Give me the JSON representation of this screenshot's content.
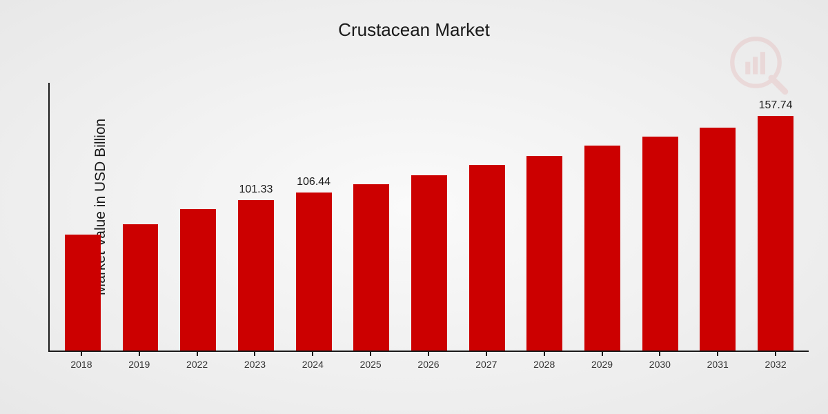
{
  "chart": {
    "type": "bar",
    "title": "Crustacean Market",
    "ylabel": "Market Value in USD Billion",
    "categories": [
      "2018",
      "2019",
      "2022",
      "2023",
      "2024",
      "2025",
      "2026",
      "2027",
      "2028",
      "2029",
      "2030",
      "2031",
      "2032"
    ],
    "values": [
      78,
      85,
      95,
      101.33,
      106.44,
      112,
      118,
      125,
      131,
      138,
      144,
      150,
      157.74
    ],
    "value_labels_visible": {
      "2023": "101.33",
      "2024": "106.44",
      "2032": "157.74"
    },
    "ylim": [
      0,
      180
    ],
    "bar_color": "#cc0000",
    "axis_color": "#1a1a1a",
    "title_fontsize": 26,
    "ylabel_fontsize": 21,
    "value_label_fontsize": 16,
    "xtick_fontsize": 14,
    "background": "radial-gradient(#fafafa,#e8e8e8)",
    "bar_width_ratio": 0.62,
    "watermark_color": "#cc0000"
  }
}
